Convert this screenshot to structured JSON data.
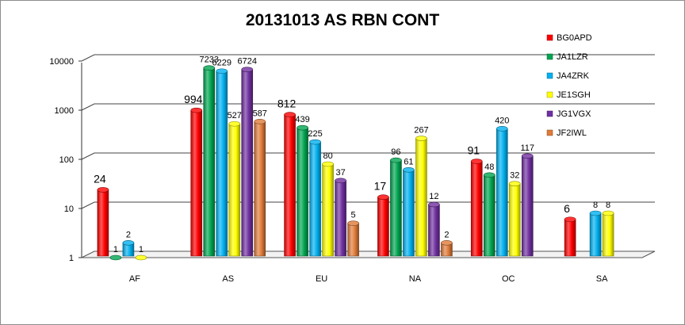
{
  "chart_data": {
    "type": "bar",
    "title": "20131013 AS RBN CONT",
    "xlabel": "",
    "ylabel": "",
    "y_scale": "log",
    "ylim": [
      1,
      10000
    ],
    "yticks": [
      "1",
      "10",
      "100",
      "1000",
      "10000"
    ],
    "categories": [
      "AF",
      "AS",
      "EU",
      "NA",
      "OC",
      "SA"
    ],
    "series": [
      {
        "name": "BG0APD",
        "color": "#ff0000",
        "values": [
          24,
          994,
          812,
          17,
          91,
          6
        ]
      },
      {
        "name": "JA1LZR",
        "color": "#00a550",
        "values": [
          1,
          7233,
          439,
          96,
          48,
          null
        ]
      },
      {
        "name": "JA4ZRK",
        "color": "#00b0f0",
        "values": [
          2,
          6229,
          225,
          61,
          420,
          8
        ]
      },
      {
        "name": "JE1SGH",
        "color": "#ffff00",
        "values": [
          1,
          527,
          80,
          267,
          32,
          8
        ]
      },
      {
        "name": "JG1VGX",
        "color": "#7030a0",
        "values": [
          null,
          6724,
          37,
          12,
          117,
          null
        ]
      },
      {
        "name": "JF2IWL",
        "color": "#e07b39",
        "values": [
          null,
          587,
          5,
          2,
          null,
          null
        ]
      }
    ],
    "data_labels": [
      [
        "24",
        "994",
        "812",
        "17",
        "91",
        "6"
      ],
      [
        "1",
        "7233",
        "439",
        "96",
        "48",
        ""
      ],
      [
        "2",
        "6229",
        "225",
        "61",
        "420",
        "8"
      ],
      [
        "1",
        "527",
        "80",
        "267",
        "32",
        "8"
      ],
      [
        "",
        "6724",
        "37",
        "12",
        "117",
        ""
      ],
      [
        "",
        "587",
        "5",
        "2",
        "",
        ""
      ]
    ],
    "legend_position": "right",
    "grid": true
  }
}
